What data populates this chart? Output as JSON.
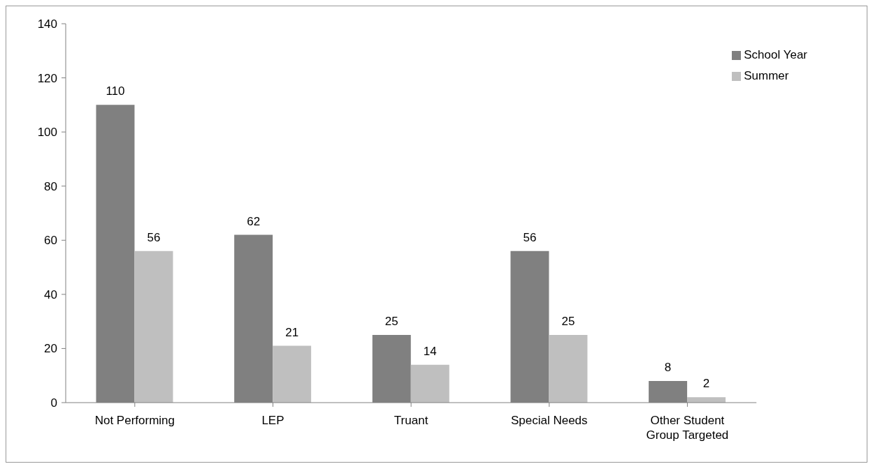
{
  "chart_data": {
    "type": "bar",
    "categories": [
      "Not Performing",
      "LEP",
      "Truant",
      "Special Needs",
      "Other Student Group Targeted"
    ],
    "series": [
      {
        "name": "School Year",
        "color": "#808080",
        "values": [
          110,
          62,
          25,
          56,
          8
        ]
      },
      {
        "name": "Summer",
        "color": "#bfbfbf",
        "values": [
          56,
          21,
          14,
          25,
          2
        ]
      }
    ],
    "ylim": [
      0,
      140
    ],
    "yticks": [
      0,
      20,
      40,
      60,
      80,
      100,
      120,
      140
    ],
    "grid": false,
    "legend": "top right",
    "data_labels": true
  }
}
